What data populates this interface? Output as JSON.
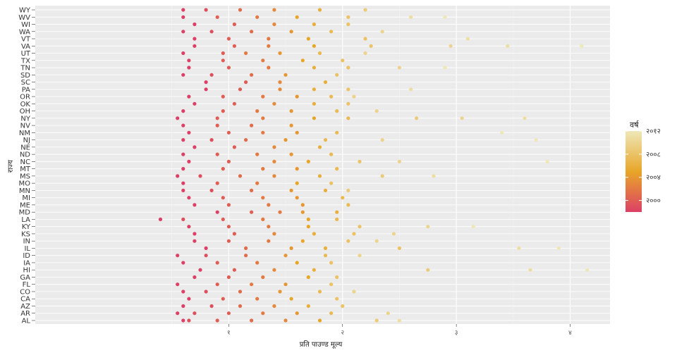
{
  "chart_data": {
    "type": "scatter",
    "xlabel": "प्रति पाउण्ड मूल्य",
    "ylabel": "राज्य",
    "xlim": [
      -0.7,
      4.35
    ],
    "x_ticks": [
      1,
      2,
      3,
      4
    ],
    "x_tick_labels": [
      "१",
      "२",
      "३",
      "४"
    ],
    "grid": true,
    "legend": {
      "title": "वर्ष",
      "position": "right",
      "min": 1998,
      "max": 2012,
      "breaks": [
        {
          "value": 2000,
          "label": "२०००"
        },
        {
          "value": 2004,
          "label": "२००४"
        },
        {
          "value": 2008,
          "label": "२००८"
        },
        {
          "value": 2012,
          "label": "२०१२"
        }
      ],
      "colors": {
        "low": "#DC4066",
        "mid": "#E8A628",
        "high": "#EEE7B8"
      }
    },
    "states": [
      "AL",
      "AR",
      "AZ",
      "CA",
      "CO",
      "FL",
      "GA",
      "HI",
      "IA",
      "ID",
      "IL",
      "IN",
      "KS",
      "KY",
      "LA",
      "MD",
      "ME",
      "MI",
      "MN",
      "MO",
      "MS",
      "MT",
      "NC",
      "ND",
      "NE",
      "NJ",
      "NM",
      "NV",
      "NY",
      "OH",
      "OK",
      "OR",
      "PA",
      "SC",
      "SD",
      "TN",
      "TX",
      "UT",
      "VA",
      "VT",
      "WA",
      "WI",
      "WV",
      "WY"
    ],
    "series_points": {
      "AL": [
        [
          0.6,
          1998
        ],
        [
          0.65,
          1999
        ],
        [
          0.9,
          2000
        ],
        [
          1.2,
          2001
        ],
        [
          1.5,
          2003
        ],
        [
          1.8,
          2005
        ],
        [
          2.3,
          2009
        ],
        [
          2.5,
          2011
        ]
      ],
      "AR": [
        [
          0.55,
          1998
        ],
        [
          0.7,
          1999
        ],
        [
          1.0,
          2000
        ],
        [
          1.3,
          2002
        ],
        [
          1.6,
          2004
        ],
        [
          1.9,
          2007
        ],
        [
          2.4,
          2010
        ]
      ],
      "AZ": [
        [
          0.6,
          1998
        ],
        [
          0.85,
          1999
        ],
        [
          1.1,
          2001
        ],
        [
          1.4,
          2003
        ],
        [
          1.7,
          2006
        ],
        [
          2.0,
          2008
        ]
      ],
      "CA": [
        [
          0.65,
          1998
        ],
        [
          0.95,
          2000
        ],
        [
          1.25,
          2002
        ],
        [
          1.55,
          2005
        ],
        [
          1.95,
          2008
        ]
      ],
      "CO": [
        [
          0.6,
          1998
        ],
        [
          0.8,
          1999
        ],
        [
          1.1,
          2001
        ],
        [
          1.45,
          2004
        ],
        [
          1.8,
          2007
        ],
        [
          2.1,
          2010
        ]
      ],
      "FL": [
        [
          0.55,
          1998
        ],
        [
          0.9,
          2000
        ],
        [
          1.2,
          2002
        ],
        [
          1.5,
          2004
        ],
        [
          1.9,
          2008
        ]
      ],
      "GA": [
        [
          0.7,
          1998
        ],
        [
          1.0,
          2000
        ],
        [
          1.3,
          2002
        ],
        [
          1.7,
          2005
        ],
        [
          1.95,
          2008
        ]
      ],
      "HI": [
        [
          0.75,
          1998
        ],
        [
          1.05,
          2000
        ],
        [
          1.4,
          2003
        ],
        [
          1.75,
          2006
        ],
        [
          2.75,
          2009
        ],
        [
          3.65,
          2011
        ],
        [
          4.15,
          2012
        ]
      ],
      "IA": [
        [
          0.6,
          1998
        ],
        [
          0.9,
          2000
        ],
        [
          1.25,
          2002
        ],
        [
          1.6,
          2005
        ],
        [
          1.9,
          2008
        ]
      ],
      "ID": [
        [
          0.55,
          1998
        ],
        [
          0.8,
          1999
        ],
        [
          1.15,
          2001
        ],
        [
          1.5,
          2004
        ],
        [
          1.85,
          2007
        ],
        [
          2.15,
          2010
        ]
      ],
      "IL": [
        [
          0.8,
          1998
        ],
        [
          1.15,
          2001
        ],
        [
          1.55,
          2004
        ],
        [
          1.85,
          2006
        ],
        [
          2.5,
          2008
        ],
        [
          3.55,
          2011
        ],
        [
          3.9,
          2012
        ]
      ],
      "IN": [
        [
          0.7,
          1998
        ],
        [
          1.0,
          2000
        ],
        [
          1.35,
          2002
        ],
        [
          1.65,
          2005
        ],
        [
          2.05,
          2008
        ],
        [
          2.3,
          2010
        ]
      ],
      "KS": [
        [
          0.7,
          1998
        ],
        [
          1.05,
          2000
        ],
        [
          1.4,
          2003
        ],
        [
          1.75,
          2006
        ],
        [
          2.1,
          2008
        ],
        [
          2.45,
          2010
        ]
      ],
      "KY": [
        [
          0.65,
          1998
        ],
        [
          1.0,
          2000
        ],
        [
          1.35,
          2002
        ],
        [
          1.7,
          2005
        ],
        [
          2.15,
          2008
        ],
        [
          2.75,
          2010
        ],
        [
          3.15,
          2012
        ]
      ],
      "LA": [
        [
          0.4,
          1998
        ],
        [
          0.6,
          1999
        ],
        [
          0.95,
          2000
        ],
        [
          1.3,
          2002
        ],
        [
          1.7,
          2005
        ],
        [
          1.95,
          2007
        ]
      ],
      "MD": [
        [
          0.9,
          1998
        ],
        [
          1.2,
          2000
        ],
        [
          1.45,
          2002
        ],
        [
          1.65,
          2004
        ],
        [
          1.95,
          2006
        ]
      ],
      "ME": [
        [
          0.7,
          1998
        ],
        [
          1.0,
          2000
        ],
        [
          1.35,
          2002
        ],
        [
          1.65,
          2004
        ],
        [
          2.05,
          2007
        ]
      ],
      "MI": [
        [
          0.65,
          1998
        ],
        [
          0.95,
          2000
        ],
        [
          1.3,
          2002
        ],
        [
          1.6,
          2004
        ],
        [
          2.0,
          2007
        ]
      ],
      "MN": [
        [
          0.6,
          1998
        ],
        [
          0.85,
          1999
        ],
        [
          1.2,
          2001
        ],
        [
          1.55,
          2004
        ],
        [
          1.85,
          2006
        ],
        [
          2.05,
          2009
        ]
      ],
      "MO": [
        [
          0.6,
          1998
        ],
        [
          0.9,
          2000
        ],
        [
          1.25,
          2002
        ],
        [
          1.6,
          2005
        ],
        [
          1.9,
          2008
        ]
      ],
      "MS": [
        [
          0.55,
          1998
        ],
        [
          0.75,
          1999
        ],
        [
          1.1,
          2001
        ],
        [
          1.4,
          2003
        ],
        [
          1.8,
          2006
        ],
        [
          2.35,
          2009
        ],
        [
          2.8,
          2011
        ]
      ],
      "MT": [
        [
          0.6,
          1998
        ],
        [
          0.95,
          2000
        ],
        [
          1.3,
          2002
        ],
        [
          1.6,
          2004
        ],
        [
          1.95,
          2007
        ]
      ],
      "NC": [
        [
          0.65,
          1998
        ],
        [
          1.0,
          2000
        ],
        [
          1.4,
          2003
        ],
        [
          1.7,
          2005
        ],
        [
          2.15,
          2008
        ],
        [
          2.5,
          2010
        ],
        [
          3.8,
          2012
        ]
      ],
      "ND": [
        [
          0.6,
          1998
        ],
        [
          0.9,
          2000
        ],
        [
          1.25,
          2002
        ],
        [
          1.55,
          2004
        ],
        [
          1.9,
          2007
        ]
      ],
      "NE": [
        [
          0.7,
          1998
        ],
        [
          1.05,
          2000
        ],
        [
          1.4,
          2003
        ],
        [
          1.8,
          2006
        ]
      ],
      "NJ": [
        [
          0.6,
          1998
        ],
        [
          0.85,
          1999
        ],
        [
          1.15,
          2001
        ],
        [
          1.5,
          2004
        ],
        [
          1.85,
          2007
        ],
        [
          2.35,
          2010
        ],
        [
          3.7,
          2012
        ]
      ],
      "NM": [
        [
          0.65,
          1998
        ],
        [
          1.0,
          2000
        ],
        [
          1.3,
          2002
        ],
        [
          1.6,
          2004
        ],
        [
          1.95,
          2007
        ],
        [
          3.4,
          2012
        ]
      ],
      "NV": [
        [
          0.6,
          1998
        ],
        [
          0.9,
          2000
        ],
        [
          1.2,
          2001
        ],
        [
          1.55,
          2004
        ]
      ],
      "NY": [
        [
          0.55,
          1998
        ],
        [
          0.9,
          2000
        ],
        [
          1.3,
          2002
        ],
        [
          1.75,
          2005
        ],
        [
          2.05,
          2007
        ],
        [
          2.65,
          2009
        ],
        [
          3.05,
          2010
        ],
        [
          3.6,
          2011
        ]
      ],
      "OH": [
        [
          0.6,
          1998
        ],
        [
          0.95,
          2000
        ],
        [
          1.25,
          2002
        ],
        [
          1.55,
          2004
        ],
        [
          1.95,
          2007
        ],
        [
          2.3,
          2010
        ]
      ],
      "OK": [
        [
          0.7,
          1998
        ],
        [
          1.05,
          2000
        ],
        [
          1.4,
          2003
        ],
        [
          1.75,
          2006
        ],
        [
          2.05,
          2008
        ]
      ],
      "OR": [
        [
          0.65,
          1998
        ],
        [
          0.95,
          2000
        ],
        [
          1.3,
          2002
        ],
        [
          1.6,
          2004
        ],
        [
          1.9,
          2007
        ],
        [
          2.1,
          2010
        ]
      ],
      "PA": [
        [
          0.8,
          1998
        ],
        [
          1.1,
          2000
        ],
        [
          1.45,
          2003
        ],
        [
          1.75,
          2006
        ],
        [
          2.05,
          2008
        ],
        [
          2.6,
          2011
        ]
      ],
      "SC": [
        [
          0.8,
          1998
        ],
        [
          1.15,
          2000
        ],
        [
          1.45,
          2003
        ],
        [
          1.85,
          2006
        ]
      ],
      "SD": [
        [
          0.6,
          1998
        ],
        [
          0.85,
          1999
        ],
        [
          1.2,
          2001
        ],
        [
          1.5,
          2004
        ],
        [
          1.95,
          2008
        ]
      ],
      "TN": [
        [
          0.65,
          1998
        ],
        [
          1.0,
          2000
        ],
        [
          1.35,
          2002
        ],
        [
          1.75,
          2006
        ],
        [
          2.05,
          2008
        ],
        [
          2.5,
          2010
        ],
        [
          2.9,
          2012
        ]
      ],
      "TX": [
        [
          0.65,
          1998
        ],
        [
          0.95,
          2000
        ],
        [
          1.3,
          2002
        ],
        [
          1.65,
          2005
        ],
        [
          2.0,
          2008
        ]
      ],
      "UT": [
        [
          0.6,
          1998
        ],
        [
          0.95,
          2000
        ],
        [
          1.15,
          2002
        ],
        [
          1.45,
          2004
        ],
        [
          1.8,
          2007
        ],
        [
          2.2,
          2010
        ]
      ],
      "VA": [
        [
          0.7,
          1998
        ],
        [
          1.05,
          2000
        ],
        [
          1.35,
          2002
        ],
        [
          1.75,
          2005
        ],
        [
          2.25,
          2008
        ],
        [
          2.95,
          2010
        ],
        [
          3.45,
          2011
        ],
        [
          4.1,
          2012
        ]
      ],
      "VT": [
        [
          0.7,
          1998
        ],
        [
          1.0,
          2000
        ],
        [
          1.35,
          2002
        ],
        [
          1.7,
          2005
        ],
        [
          2.2,
          2008
        ],
        [
          3.1,
          2011
        ]
      ],
      "WA": [
        [
          0.6,
          1998
        ],
        [
          0.85,
          1999
        ],
        [
          1.2,
          2001
        ],
        [
          1.55,
          2004
        ],
        [
          1.9,
          2007
        ],
        [
          2.35,
          2010
        ]
      ],
      "WI": [
        [
          0.7,
          1998
        ],
        [
          1.05,
          2000
        ],
        [
          1.4,
          2003
        ],
        [
          1.75,
          2006
        ],
        [
          2.05,
          2008
        ]
      ],
      "WV": [
        [
          0.6,
          1998
        ],
        [
          0.9,
          2000
        ],
        [
          1.25,
          2002
        ],
        [
          1.6,
          2005
        ],
        [
          2.05,
          2008
        ],
        [
          2.6,
          2011
        ],
        [
          2.9,
          2012
        ]
      ],
      "WY": [
        [
          0.6,
          1998
        ],
        [
          0.8,
          1999
        ],
        [
          1.1,
          2001
        ],
        [
          1.4,
          2003
        ],
        [
          1.8,
          2006
        ],
        [
          2.2,
          2009
        ]
      ]
    }
  }
}
